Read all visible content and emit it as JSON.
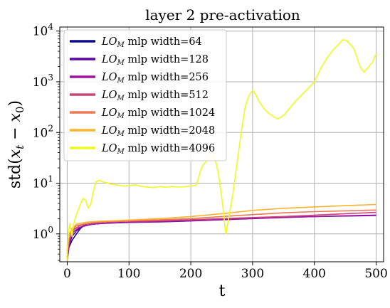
{
  "chart_data": {
    "type": "line",
    "title": "layer 2 pre-activation",
    "xlabel": "t",
    "ylabel_parts": {
      "prefix": "std(",
      "x": "x",
      "t": "t",
      "minus": " − ",
      "zero": "0",
      "suffix": ")"
    },
    "yscale": "log",
    "xlim": [
      -12,
      512
    ],
    "ylim_log10": [
      -0.55,
      4.08
    ],
    "grid": true,
    "legend_position": "upper-left",
    "legend_label_prefix": {
      "lo": "LO",
      "sub": "M"
    },
    "x_ticks": [
      {
        "value": 0,
        "label": "0"
      },
      {
        "value": 100,
        "label": "100"
      },
      {
        "value": 200,
        "label": "200"
      },
      {
        "value": 300,
        "label": "300"
      },
      {
        "value": 400,
        "label": "400"
      },
      {
        "value": 500,
        "label": "500"
      }
    ],
    "y_ticks": [
      {
        "exp": 0,
        "base": "10",
        "sup": "0"
      },
      {
        "exp": 1,
        "base": "10",
        "sup": "1"
      },
      {
        "exp": 2,
        "base": "10",
        "sup": "2"
      },
      {
        "exp": 3,
        "base": "10",
        "sup": "3"
      },
      {
        "exp": 4,
        "base": "10",
        "sup": "4"
      }
    ],
    "series": [
      {
        "name": "mlp width=64",
        "color": "#0d0887",
        "points": [
          [
            0,
            0.3
          ],
          [
            3,
            0.55
          ],
          [
            8,
            0.75
          ],
          [
            15,
            1.0
          ],
          [
            22,
            1.3
          ],
          [
            30,
            1.55
          ],
          [
            40,
            1.65
          ],
          [
            50,
            1.7
          ],
          [
            60,
            1.75
          ],
          [
            68,
            1.7
          ]
        ]
      },
      {
        "name": "mlp width=128",
        "color": "#5c01a6",
        "points": [
          [
            0,
            0.3
          ],
          [
            3,
            0.6
          ],
          [
            8,
            0.9
          ],
          [
            15,
            1.15
          ],
          [
            25,
            1.4
          ],
          [
            40,
            1.55
          ],
          [
            60,
            1.62
          ],
          [
            80,
            1.65
          ],
          [
            100,
            1.68
          ],
          [
            150,
            1.72
          ],
          [
            200,
            1.8
          ],
          [
            250,
            1.9
          ],
          [
            300,
            2.0
          ],
          [
            350,
            2.1
          ],
          [
            400,
            2.2
          ],
          [
            450,
            2.25
          ],
          [
            500,
            2.3
          ]
        ]
      },
      {
        "name": "mlp width=256",
        "color": "#9c179e",
        "points": [
          [
            0,
            0.35
          ],
          [
            4,
            0.7
          ],
          [
            10,
            1.1
          ],
          [
            20,
            1.35
          ],
          [
            35,
            1.5
          ],
          [
            50,
            1.6
          ],
          [
            70,
            1.65
          ],
          [
            100,
            1.7
          ],
          [
            150,
            1.75
          ],
          [
            200,
            1.82
          ],
          [
            250,
            1.92
          ],
          [
            300,
            2.02
          ],
          [
            350,
            2.12
          ],
          [
            400,
            2.2
          ],
          [
            450,
            2.28
          ],
          [
            500,
            2.35
          ]
        ]
      },
      {
        "name": "mlp width=512",
        "color": "#cc4778",
        "points": [
          [
            0,
            0.4
          ],
          [
            4,
            0.8
          ],
          [
            10,
            1.2
          ],
          [
            20,
            1.45
          ],
          [
            35,
            1.6
          ],
          [
            50,
            1.7
          ],
          [
            75,
            1.75
          ],
          [
            100,
            1.78
          ],
          [
            150,
            1.82
          ],
          [
            200,
            1.9
          ],
          [
            250,
            2.0
          ],
          [
            300,
            2.1
          ],
          [
            350,
            2.2
          ],
          [
            400,
            2.35
          ],
          [
            450,
            2.5
          ],
          [
            500,
            2.65
          ]
        ]
      },
      {
        "name": "mlp width=1024",
        "color": "#ed7953",
        "points": [
          [
            0,
            0.45
          ],
          [
            3,
            0.9
          ],
          [
            8,
            1.2
          ],
          [
            15,
            1.45
          ],
          [
            30,
            1.6
          ],
          [
            50,
            1.7
          ],
          [
            70,
            1.75
          ],
          [
            100,
            1.8
          ],
          [
            150,
            1.9
          ],
          [
            200,
            2.0
          ],
          [
            250,
            2.2
          ],
          [
            300,
            2.4
          ],
          [
            350,
            2.6
          ],
          [
            400,
            2.75
          ],
          [
            450,
            2.85
          ],
          [
            500,
            2.95
          ]
        ]
      },
      {
        "name": "mlp width=2048",
        "color": "#fdb42f",
        "points": [
          [
            0,
            0.5
          ],
          [
            3,
            1.0
          ],
          [
            8,
            1.3
          ],
          [
            15,
            1.55
          ],
          [
            30,
            1.7
          ],
          [
            50,
            1.78
          ],
          [
            75,
            1.82
          ],
          [
            100,
            1.88
          ],
          [
            150,
            2.0
          ],
          [
            200,
            2.2
          ],
          [
            250,
            2.5
          ],
          [
            300,
            2.9
          ],
          [
            350,
            3.2
          ],
          [
            400,
            3.4
          ],
          [
            450,
            3.6
          ],
          [
            500,
            3.8
          ]
        ]
      },
      {
        "name": "mlp width=4096",
        "color": "#f0f921",
        "points": [
          [
            0,
            0.3
          ],
          [
            2,
            1.1
          ],
          [
            4,
            1.6
          ],
          [
            6,
            1.2
          ],
          [
            8,
            0.9
          ],
          [
            10,
            1.5
          ],
          [
            14,
            2.2
          ],
          [
            18,
            3.0
          ],
          [
            22,
            4.0
          ],
          [
            26,
            5.0
          ],
          [
            30,
            4.5
          ],
          [
            34,
            3.2
          ],
          [
            38,
            3.8
          ],
          [
            42,
            6.5
          ],
          [
            46,
            10.5
          ],
          [
            52,
            11.5
          ],
          [
            58,
            10.5
          ],
          [
            64,
            10.2
          ],
          [
            70,
            9.6
          ],
          [
            80,
            9.2
          ],
          [
            90,
            8.8
          ],
          [
            100,
            8.9
          ],
          [
            110,
            9.3
          ],
          [
            120,
            8.6
          ],
          [
            130,
            8.4
          ],
          [
            140,
            8.2
          ],
          [
            150,
            8.6
          ],
          [
            160,
            8.3
          ],
          [
            170,
            8.6
          ],
          [
            180,
            8.4
          ],
          [
            190,
            8.5
          ],
          [
            200,
            8.8
          ],
          [
            208,
            9.0
          ],
          [
            212,
            12
          ],
          [
            216,
            18
          ],
          [
            220,
            23
          ],
          [
            224,
            26
          ],
          [
            228,
            30
          ],
          [
            232,
            33
          ],
          [
            236,
            38
          ],
          [
            240,
            28
          ],
          [
            244,
            17
          ],
          [
            248,
            8
          ],
          [
            252,
            3.5
          ],
          [
            255,
            1.5
          ],
          [
            257,
            1.0
          ],
          [
            259,
            1.4
          ],
          [
            262,
            2.3
          ],
          [
            268,
            6
          ],
          [
            275,
            25
          ],
          [
            282,
            110
          ],
          [
            288,
            320
          ],
          [
            294,
            530
          ],
          [
            300,
            680
          ],
          [
            305,
            560
          ],
          [
            310,
            420
          ],
          [
            318,
            300
          ],
          [
            326,
            240
          ],
          [
            334,
            205
          ],
          [
            340,
            185
          ],
          [
            346,
            200
          ],
          [
            352,
            230
          ],
          [
            360,
            300
          ],
          [
            370,
            420
          ],
          [
            380,
            560
          ],
          [
            390,
            740
          ],
          [
            400,
            1000
          ],
          [
            410,
            1800
          ],
          [
            420,
            2900
          ],
          [
            430,
            4200
          ],
          [
            440,
            5600
          ],
          [
            446,
            6800
          ],
          [
            452,
            6500
          ],
          [
            458,
            5500
          ],
          [
            464,
            4500
          ],
          [
            468,
            3200
          ],
          [
            472,
            2300
          ],
          [
            476,
            1800
          ],
          [
            480,
            1550
          ],
          [
            486,
            1850
          ],
          [
            490,
            2150
          ],
          [
            494,
            2400
          ],
          [
            498,
            3200
          ],
          [
            500,
            3500
          ]
        ]
      }
    ]
  }
}
